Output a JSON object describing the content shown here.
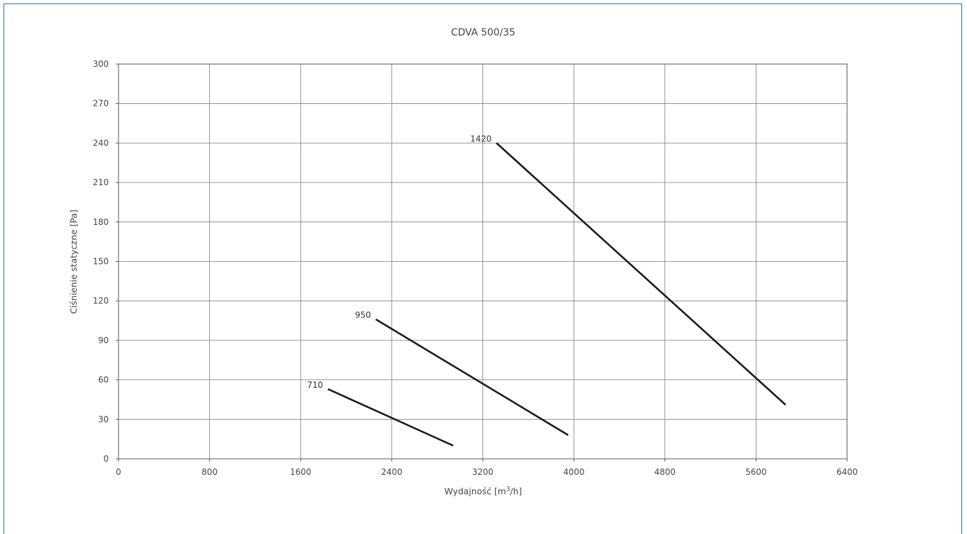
{
  "chart_data": {
    "type": "line",
    "title": "CDVA 500/35",
    "xlabel": {
      "main": "Wydajność [m",
      "sup": "3",
      "tail": "/h]"
    },
    "ylabel": "Ciśnienie statyczne [Pa]",
    "xlim": [
      0,
      6400
    ],
    "ylim": [
      0,
      300
    ],
    "xticks": [
      0,
      800,
      1600,
      2400,
      3200,
      4000,
      4800,
      5600,
      6400
    ],
    "yticks": [
      0,
      30,
      60,
      90,
      120,
      150,
      180,
      210,
      240,
      270,
      300
    ],
    "grid": true,
    "legend": "none",
    "line_color": "#1a1a1a",
    "grid_color": "#7a7a7a",
    "series": [
      {
        "name": "710",
        "x": [
          1840,
          2940
        ],
        "y": [
          53,
          10
        ]
      },
      {
        "name": "950",
        "x": [
          2260,
          3950
        ],
        "y": [
          106,
          18
        ]
      },
      {
        "name": "1420",
        "x": [
          3320,
          5860
        ],
        "y": [
          240,
          41
        ]
      }
    ]
  }
}
